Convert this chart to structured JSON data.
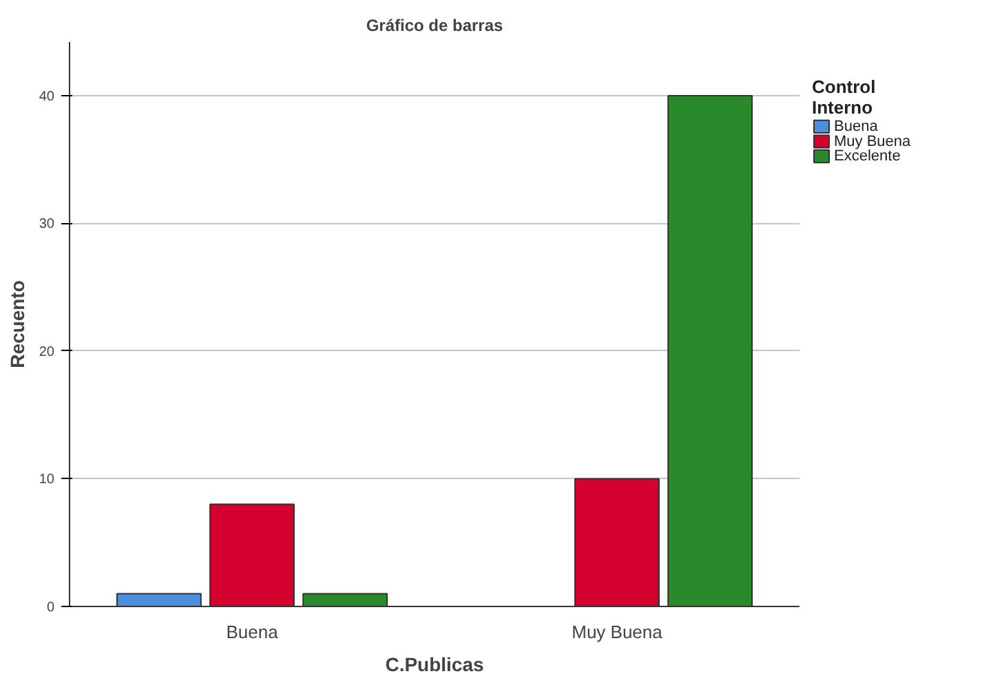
{
  "chart_data": {
    "type": "bar",
    "title": "Gráfico de barras",
    "xlabel": "C.Publicas",
    "ylabel": "Recuento",
    "legend_title": "Control Interno",
    "categories": [
      "Buena",
      "Muy Buena"
    ],
    "series": [
      {
        "name": "Buena",
        "color": "#4a8fe0",
        "values": [
          1,
          null
        ]
      },
      {
        "name": "Muy Buena",
        "color": "#d4002e",
        "values": [
          8,
          10
        ]
      },
      {
        "name": "Excelente",
        "color": "#2a8a2a",
        "values": [
          1,
          40
        ]
      }
    ],
    "ylim": [
      0,
      44.2
    ],
    "yticks": [
      0,
      10,
      20,
      30,
      40
    ],
    "grid": "y",
    "legend": "right"
  }
}
